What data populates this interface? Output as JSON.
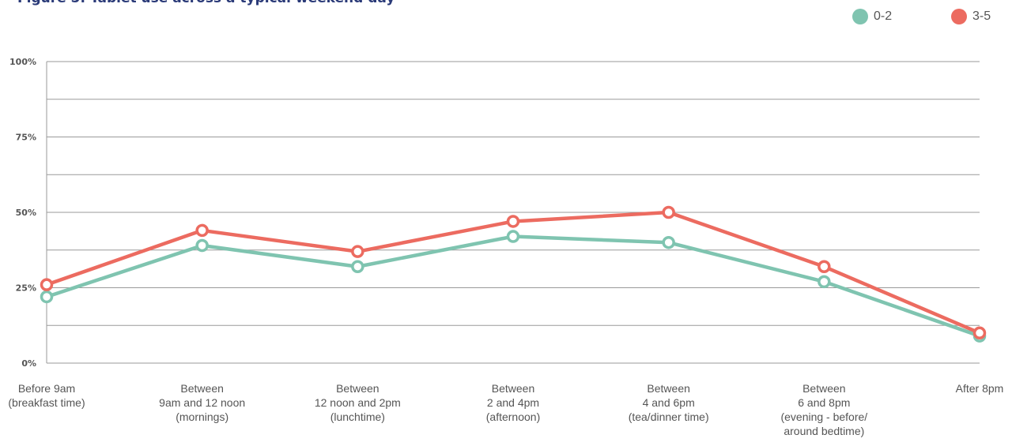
{
  "title": "Figure 5: Tablet use across a typical weekend day",
  "legend": [
    {
      "label": "0-2",
      "color": "#7fc4b0"
    },
    {
      "label": "3-5",
      "color": "#ec6b60"
    }
  ],
  "chart_data": {
    "type": "line",
    "title": "Figure 5: Tablet use across a typical weekend day",
    "xlabel": "",
    "ylabel": "",
    "ylim": [
      0,
      100
    ],
    "yticks": [
      {
        "value": 0,
        "label": "0%"
      },
      {
        "value": 25,
        "label": "25%"
      },
      {
        "value": 50,
        "label": "50%"
      },
      {
        "value": 75,
        "label": "75%"
      },
      {
        "value": 100,
        "label": "100%"
      }
    ],
    "grid": true,
    "legend_position": "top-right",
    "categories": [
      [
        "Before 9am",
        "(breakfast time)"
      ],
      [
        "Between",
        "9am and 12 noon",
        "(mornings)"
      ],
      [
        "Between",
        "12 noon and 2pm",
        "(lunchtime)"
      ],
      [
        "Between",
        "2 and 4pm",
        "(afternoon)"
      ],
      [
        "Between",
        "4 and 6pm",
        "(tea/dinner time)"
      ],
      [
        "Between",
        "6 and 8pm",
        "(evening - before/",
        "around bedtime)"
      ],
      [
        "After 8pm"
      ]
    ],
    "series": [
      {
        "name": "0-2",
        "color": "#7fc4b0",
        "values": [
          22,
          39,
          32,
          42,
          40,
          27,
          9
        ]
      },
      {
        "name": "3-5",
        "color": "#ec6b60",
        "values": [
          26,
          44,
          37,
          47,
          50,
          32,
          10
        ]
      }
    ]
  }
}
